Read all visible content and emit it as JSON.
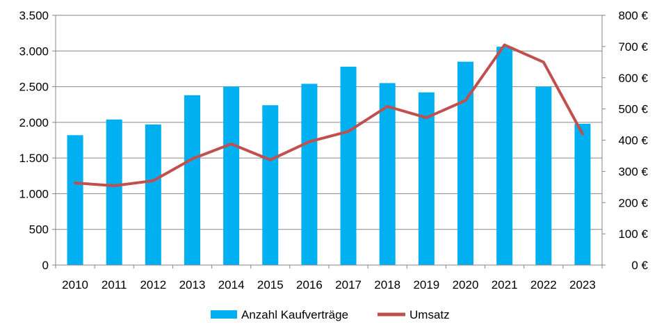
{
  "chart_data": {
    "type": "bar",
    "categories": [
      "2010",
      "2011",
      "2012",
      "2013",
      "2014",
      "2015",
      "2016",
      "2017",
      "2018",
      "2019",
      "2020",
      "2021",
      "2022",
      "2023"
    ],
    "series": [
      {
        "name": "Anzahl Kaufverträge",
        "type": "bar",
        "axis": "left",
        "color": "#00b0f0",
        "values": [
          1820,
          2040,
          1970,
          2380,
          2500,
          2240,
          2540,
          2780,
          2550,
          2420,
          2850,
          3060,
          2500,
          1980
        ]
      },
      {
        "name": "Umsatz",
        "type": "line",
        "axis": "right",
        "color": "#c0504d",
        "values": [
          263,
          254,
          270,
          340,
          388,
          337,
          395,
          428,
          508,
          472,
          527,
          705,
          650,
          420
        ]
      }
    ],
    "left_axis": {
      "ylim": [
        0,
        3500
      ],
      "ticks": [
        0,
        500,
        1000,
        1500,
        2000,
        2500,
        3000,
        3500
      ],
      "tick_labels": [
        "0",
        "500",
        "1.000",
        "1.500",
        "2.000",
        "2.500",
        "3.000",
        "3.500"
      ]
    },
    "right_axis": {
      "ylim": [
        0,
        800
      ],
      "ticks": [
        0,
        100,
        200,
        300,
        400,
        500,
        600,
        700,
        800
      ],
      "tick_labels": [
        "0 €",
        "100 €",
        "200 €",
        "300 €",
        "400 €",
        "500 €",
        "600 €",
        "700 €",
        "800 €"
      ]
    },
    "grid": true,
    "legend_position": "bottom",
    "title": "",
    "xlabel": "",
    "ylabel": ""
  }
}
